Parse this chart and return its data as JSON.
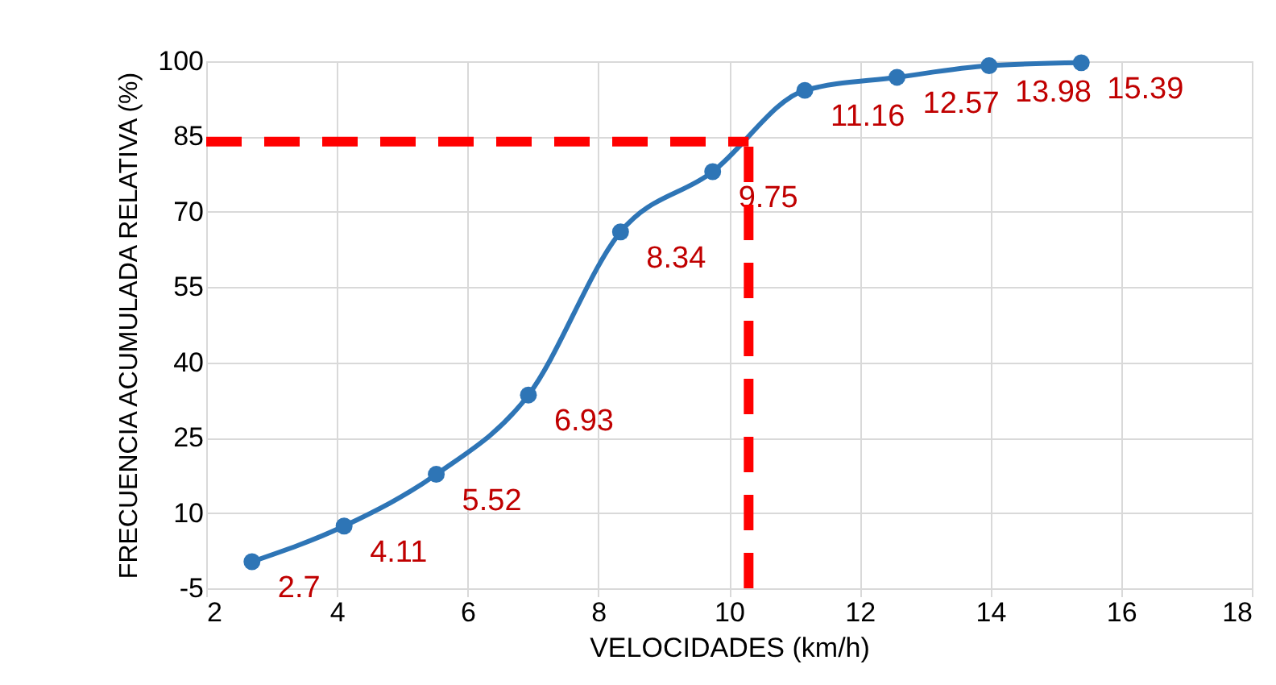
{
  "chart_data": {
    "type": "line",
    "xlabel": "VELOCIDADES (km/h)",
    "ylabel": "FRECUENCIA ACUMULADA RELATIVA (%)",
    "x": [
      2.7,
      4.11,
      5.52,
      6.93,
      8.34,
      9.75,
      11.16,
      12.57,
      13.98,
      15.39
    ],
    "series": [
      {
        "color": "#2e75b6",
        "values": [
          0.3,
          7.4,
          17.7,
          33.5,
          66,
          78,
          94.2,
          96.8,
          99.1,
          99.7
        ]
      }
    ],
    "annotations": [
      {
        "text": "2.7",
        "x": 2.7,
        "y": 0.3
      },
      {
        "text": "4.11",
        "x": 4.11,
        "y": 7.4
      },
      {
        "text": "5.52",
        "x": 5.52,
        "y": 17.7
      },
      {
        "text": "6.93",
        "x": 6.93,
        "y": 33.5
      },
      {
        "text": "8.34",
        "x": 8.34,
        "y": 66
      },
      {
        "text": "9.75",
        "x": 9.75,
        "y": 78
      },
      {
        "text": "11.16",
        "x": 11.16,
        "y": 94.2
      },
      {
        "text": "12.57",
        "x": 12.57,
        "y": 96.8
      },
      {
        "text": "13.98",
        "x": 13.98,
        "y": 99.1
      },
      {
        "text": "15.39",
        "x": 15.39,
        "y": 99.7
      }
    ],
    "xlim": [
      2,
      18
    ],
    "xticks": [
      2,
      4,
      6,
      8,
      10,
      12,
      14,
      16,
      18
    ],
    "ylim": [
      -5,
      100
    ],
    "yticks": [
      -5,
      10,
      25,
      40,
      55,
      70,
      85,
      100
    ],
    "grid": true,
    "marker": "circle",
    "ref_lines": [
      {
        "axis": "y",
        "value": 84,
        "color": "#ff0000",
        "line_style": "dashed"
      },
      {
        "axis": "x",
        "value": 10.3,
        "color": "#ff0000",
        "line_style": "dashed"
      }
    ]
  }
}
